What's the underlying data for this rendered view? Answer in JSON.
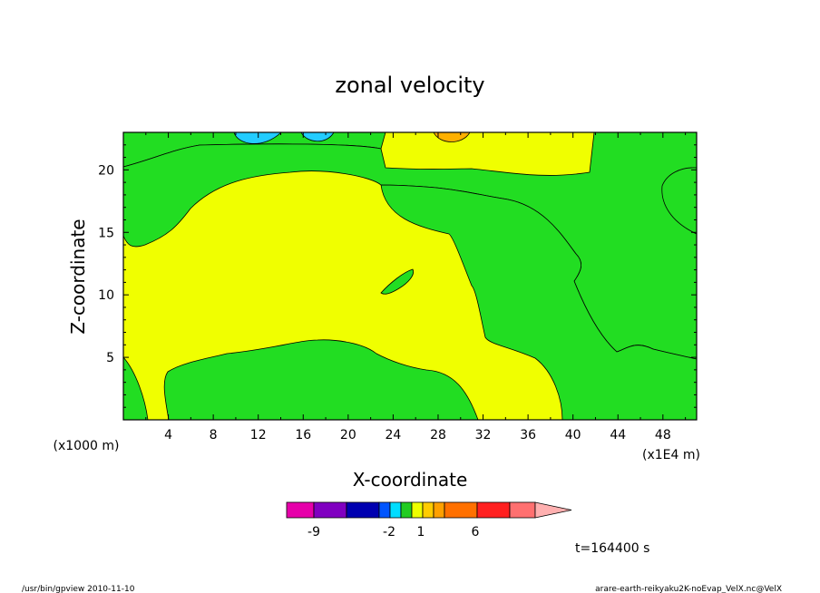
{
  "chart_data": {
    "type": "heatmap",
    "title": "zonal velocity",
    "xlabel": "X-coordinate",
    "ylabel": "Z-coordinate",
    "x_units_note": "(x1E4 m)",
    "y_units_note": "(x1000 m)",
    "xlim": [
      0,
      51
    ],
    "ylim": [
      0,
      23
    ],
    "x_ticks": [
      4,
      8,
      12,
      16,
      20,
      24,
      28,
      32,
      36,
      40,
      44,
      48
    ],
    "y_ticks": [
      5,
      10,
      15,
      20
    ],
    "time_label": "t=164400 s",
    "colorbar": {
      "tick_labels": [
        "-9",
        "-2",
        "1",
        "6"
      ],
      "colors": [
        "#e600aa",
        "#8000c0",
        "#0000b0",
        "#0055ff",
        "#00ddff",
        "#22cc22",
        "#eeff00",
        "#ffcc00",
        "#ffa000",
        "#ff7000",
        "#ff2020",
        "#ff7070",
        "#ffb0b0"
      ],
      "level_colors": {
        "yellow_band": "#f0ff00",
        "green_band": "#22dd22",
        "cyan_band": "#22ccff",
        "orange_band": "#ffb000"
      }
    },
    "regions": [
      {
        "level": "yellow_band",
        "note": "background field ~0-1 m/s"
      },
      {
        "level": "green_band",
        "note": "upper-left band z 14-23"
      },
      {
        "level": "green_band",
        "note": "diagonal band x 22-52"
      },
      {
        "level": "green_band",
        "note": "bottom lobe x 4-31, z 0-6"
      },
      {
        "level": "green_band",
        "note": "small patch near x 24, z 11"
      },
      {
        "level": "green_band",
        "note": "right patch near x 50, z 18"
      },
      {
        "level": "cyan_band",
        "note": "top near x 12 and x 17"
      },
      {
        "level": "orange_band",
        "note": "top near x 29"
      }
    ]
  },
  "footer": {
    "left": "/usr/bin/gpview  2010-11-10",
    "right": "arare-earth-reikyaku2K-noEvap_VelX.nc@VelX"
  }
}
